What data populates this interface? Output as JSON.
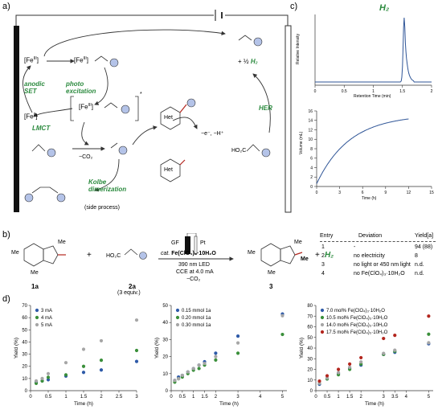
{
  "panels": {
    "a": "a)",
    "b": "b)",
    "c": "c)",
    "d": "d)"
  },
  "scheme_a": {
    "fe3": "[Fe",
    "fe3_sup": "III",
    "fe3_close": "]",
    "fe2": "[Fe",
    "fe2_sup": "II",
    "fe2_close": "]",
    "anodic_set": "anodic SET",
    "photo_excitation": "photo excitation",
    "lmct": "LMCT",
    "minus_co2": "−CO₂",
    "her": "HER",
    "half_h2_prefix": "+ ½",
    "h2": "H₂",
    "het": "Het",
    "minus_e_h": "−e⁻, −H⁺",
    "kolbe": "Kolbe dimerization",
    "side_process": "(side process)",
    "ho2c": "HO₂C"
  },
  "panel_c": {
    "h2_label": "H₂",
    "chromatogram": {
      "ylabel": "Relative Intensity",
      "xlabel": "Retention Time (min)",
      "xticks": [
        "0",
        "0.5",
        "1",
        "1.5",
        "2"
      ]
    },
    "volume": {
      "ylabel": "Volume (mL)",
      "xlabel": "Time (h)",
      "xticks": [
        "0",
        "3",
        "6",
        "9",
        "12",
        "15"
      ],
      "yticks": [
        "0",
        "2",
        "4",
        "6",
        "8",
        "10",
        "12",
        "14",
        "16"
      ]
    }
  },
  "panel_b": {
    "label_1a": "1a",
    "label_2a": "2a",
    "equiv": "(3 equiv.)",
    "label_3": "3",
    "ho2c": "HO₂C",
    "me": "Me",
    "gf": "GF",
    "pt": "Pt",
    "cond1_prefix": "cat.",
    "cond1_fe": "Fe(ClO₄)₃·10H₂O",
    "cond2": "390 nm LED",
    "cond3": "CCE at 4.0 mA",
    "cond4": "−CO₂",
    "plus": "+",
    "h2": "H₂",
    "table": {
      "headers": [
        "Entry",
        "Deviation",
        "Yield[a]"
      ],
      "rows": [
        [
          "1",
          "-",
          "94 (88)"
        ],
        [
          "2",
          "no electricity",
          "8"
        ],
        [
          "3",
          "no light or 450 nm light",
          "n.d."
        ],
        [
          "4",
          "no Fe(ClO₄)₃·10H₂O",
          "n.d."
        ]
      ]
    }
  },
  "colors": {
    "series_blue": "#2e5aa8",
    "series_green": "#3a8f3a",
    "series_gray": "#a6a6a6",
    "series_red": "#b3261e",
    "accent_green": "#2b8a3e",
    "trace_blue": "#2f5597",
    "circle_fill": "#b4c3e8"
  },
  "chart_data": [
    {
      "type": "scatter",
      "title": "",
      "xlabel": "Time (h)",
      "ylabel": "Yield (%)",
      "xlim": [
        0,
        3
      ],
      "ylim": [
        0,
        70
      ],
      "xticks": [
        "0",
        "0.5",
        "1",
        "1.5",
        "2",
        "2.5",
        "3"
      ],
      "yticks": [
        "0",
        "10",
        "20",
        "30",
        "40",
        "50",
        "60",
        "70"
      ],
      "legend": "top-left",
      "series": [
        {
          "name": "3 mA",
          "color": "#2e5aa8",
          "x": [
            0.16,
            0.33,
            0.5,
            1,
            1.5,
            2,
            3
          ],
          "y": [
            7,
            8,
            9,
            12,
            15,
            17,
            24
          ]
        },
        {
          "name": "4 mA",
          "color": "#3a8f3a",
          "x": [
            0.16,
            0.33,
            0.5,
            1,
            1.5,
            2,
            3
          ],
          "y": [
            6,
            8,
            11,
            13,
            20,
            25,
            33
          ]
        },
        {
          "name": "5 mA",
          "color": "#a6a6a6",
          "x": [
            0.16,
            0.33,
            0.5,
            1,
            1.5,
            2,
            3
          ],
          "y": [
            8,
            10,
            14,
            23,
            34,
            41,
            58
          ]
        }
      ]
    },
    {
      "type": "scatter",
      "title": "",
      "xlabel": "Time (h)",
      "ylabel": "Yield (%)",
      "xlim": [
        0,
        5.2
      ],
      "ylim": [
        0,
        50
      ],
      "xticks": [
        "0",
        "0.5",
        "1",
        "1.5",
        "2",
        "3",
        "4",
        "5"
      ],
      "yticks": [
        "0",
        "10",
        "20",
        "30",
        "40",
        "50"
      ],
      "legend": "top-left",
      "series": [
        {
          "name": "0.15 mmol 1a",
          "color": "#2e5aa8",
          "x": [
            0.16,
            0.33,
            0.5,
            0.75,
            1,
            1.25,
            1.5,
            2,
            3,
            5
          ],
          "y": [
            6,
            8,
            9,
            11,
            13,
            15,
            17,
            22,
            32,
            45
          ]
        },
        {
          "name": "0.20 mmol 1a",
          "color": "#3a8f3a",
          "x": [
            0.16,
            0.33,
            0.5,
            0.75,
            1,
            1.25,
            1.5,
            2,
            3,
            5
          ],
          "y": [
            5,
            7,
            8,
            10,
            12,
            13,
            15,
            18,
            22,
            33
          ]
        },
        {
          "name": "0.30 mmol 1a",
          "color": "#a6a6a6",
          "x": [
            0.16,
            0.33,
            0.5,
            0.75,
            1,
            1.25,
            1.5,
            2,
            3,
            5
          ],
          "y": [
            6,
            7,
            9,
            11,
            13,
            15,
            16,
            20,
            28,
            44
          ]
        }
      ]
    },
    {
      "type": "scatter",
      "title": "",
      "xlabel": "Time (h)",
      "ylabel": "Yield (%)",
      "xlim": [
        0,
        5.2
      ],
      "ylim": [
        0,
        80
      ],
      "xticks": [
        "0",
        "0.5",
        "1",
        "1.5",
        "2",
        "3",
        "3.5",
        "4",
        "5"
      ],
      "yticks": [
        "0",
        "10",
        "20",
        "30",
        "40",
        "50",
        "60",
        "70",
        "80"
      ],
      "legend": "top-left",
      "series": [
        {
          "name": "7.0 mol% Fe(ClO₄)₃·10H₂O",
          "color": "#2e5aa8",
          "x": [
            0.16,
            0.5,
            1,
            1.5,
            2,
            3,
            3.5,
            5
          ],
          "y": [
            6,
            11,
            16,
            21,
            24,
            34,
            36,
            44
          ]
        },
        {
          "name": "10.5 mol% Fe(ClO₄)₃·10H₂O",
          "color": "#3a8f3a",
          "x": [
            0.16,
            0.5,
            1,
            1.5,
            2,
            3,
            3.5,
            5
          ],
          "y": [
            7,
            11,
            15,
            20,
            25,
            34,
            37,
            53
          ]
        },
        {
          "name": "14.0 mol% Fe(ClO₄)₃·10H₂O",
          "color": "#a6a6a6",
          "x": [
            0.16,
            0.5,
            1,
            1.5,
            2,
            3,
            3.5,
            5
          ],
          "y": [
            7,
            12,
            17,
            22,
            27,
            35,
            38,
            45
          ]
        },
        {
          "name": "17.5 mol% Fe(ClO₄)₃·10H₂O",
          "color": "#b3261e",
          "x": [
            0.16,
            0.5,
            1,
            1.5,
            2,
            3,
            3.5,
            5
          ],
          "y": [
            9,
            14,
            20,
            25,
            31,
            49,
            52,
            70
          ]
        }
      ]
    }
  ]
}
